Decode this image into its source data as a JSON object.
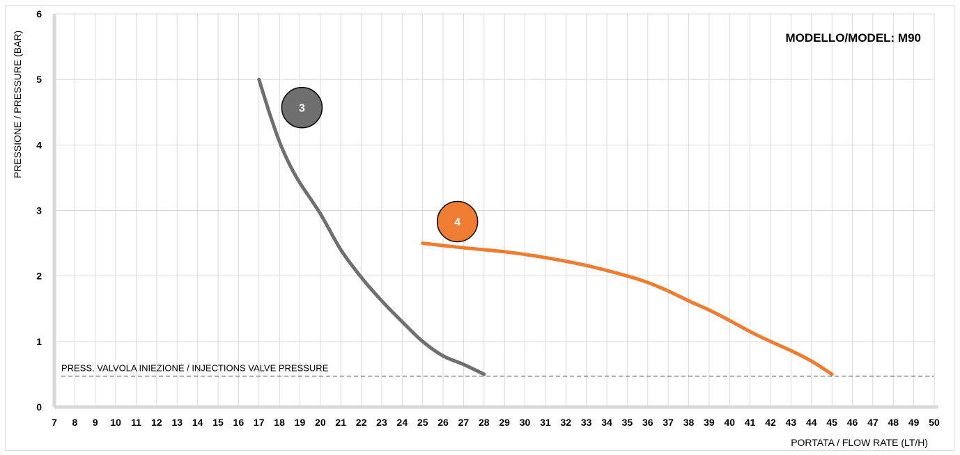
{
  "chart_data": {
    "type": "line",
    "model_label": "MODELLO/MODEL: M90",
    "xlabel": "PORTATA / FLOW RATE (LT/H)",
    "ylabel": "PRESSIONE / PRESSURE (BAR)",
    "xlim": [
      7,
      50
    ],
    "ylim": [
      0,
      6
    ],
    "x_ticks": [
      "7",
      "8",
      "9",
      "10",
      "11",
      "12",
      "13",
      "14",
      "15",
      "16",
      "17",
      "18",
      "19",
      "20",
      "21",
      "22",
      "23",
      "24",
      "25",
      "26",
      "27",
      "28",
      "29",
      "30",
      "31",
      "32",
      "33",
      "34",
      "35",
      "36",
      "37",
      "38",
      "39",
      "40",
      "41",
      "42",
      "43",
      "44",
      "45",
      "46",
      "47",
      "48",
      "49",
      "50"
    ],
    "y_ticks": [
      "0",
      "1",
      "2",
      "3",
      "4",
      "5",
      "6"
    ],
    "grid": true,
    "reference_line": {
      "label": "PRESS. VALVOLA INIEZIONE / INJECTIONS VALVE PRESSURE",
      "y": 0.47,
      "color": "#444444"
    },
    "series": [
      {
        "name": "3",
        "color": "#6f6f6f",
        "badge": {
          "x": 19.1,
          "y": 4.57
        },
        "points": [
          [
            17,
            5
          ],
          [
            17.5,
            4.5
          ],
          [
            18,
            4.05
          ],
          [
            18.5,
            3.7
          ],
          [
            19,
            3.42
          ],
          [
            20,
            2.95
          ],
          [
            21,
            2.4
          ],
          [
            22,
            1.98
          ],
          [
            23,
            1.62
          ],
          [
            24,
            1.3
          ],
          [
            25,
            1.0
          ],
          [
            26,
            0.78
          ],
          [
            27,
            0.65
          ],
          [
            28,
            0.5
          ]
        ]
      },
      {
        "name": "4",
        "color": "#ef7d31",
        "badge": {
          "x": 26.7,
          "y": 2.83
        },
        "points": [
          [
            25,
            2.5
          ],
          [
            27,
            2.43
          ],
          [
            29,
            2.37
          ],
          [
            31,
            2.28
          ],
          [
            33,
            2.16
          ],
          [
            35,
            2.0
          ],
          [
            36,
            1.9
          ],
          [
            37,
            1.77
          ],
          [
            38,
            1.62
          ],
          [
            39,
            1.48
          ],
          [
            40,
            1.32
          ],
          [
            41,
            1.15
          ],
          [
            42,
            1.0
          ],
          [
            43,
            0.86
          ],
          [
            44,
            0.7
          ],
          [
            45,
            0.5
          ]
        ]
      }
    ]
  }
}
